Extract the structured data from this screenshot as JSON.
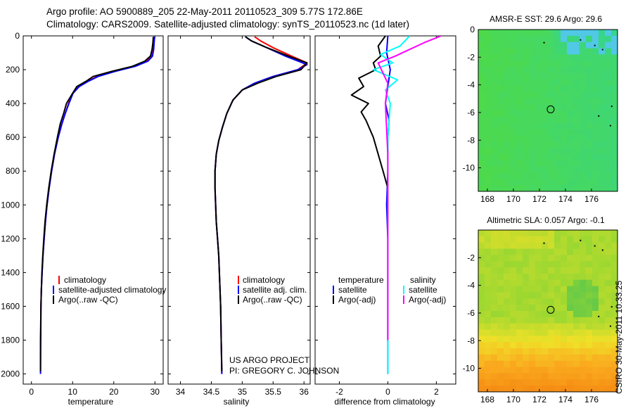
{
  "header": {
    "line1": "Argo profile: AO 5900889_205 22-May-2011 20110523_309 5.77S 172.86E",
    "line2": "Climatology: CARS2009. Satellite-adjusted climatology: synTS_20110523.nc (1d later)"
  },
  "credit": {
    "line1": "US ARGO PROJECT",
    "line2": "PI: GREGORY C. JOHNSON"
  },
  "side_label": "CSIRO 30-May-2011 10:33:25",
  "colors": {
    "climatology": "#ff0000",
    "satellite": "#0000ff",
    "argo": "#000000",
    "sal_satellite": "#00ffff",
    "sal_argo": "#ff00ff"
  },
  "chart_data": [
    {
      "type": "line",
      "id": "temperature",
      "xlabel": "temperature",
      "ylabel": "",
      "xlim": [
        -2,
        32
      ],
      "ylim": [
        2060,
        0
      ],
      "y_reversed": true,
      "xticks": [
        0,
        10,
        20,
        30
      ],
      "yticks": [
        0,
        200,
        400,
        600,
        800,
        1000,
        1200,
        1400,
        1600,
        1800,
        2000
      ],
      "legend": [
        "climatology",
        "satellite-adjusted climatology",
        "Argo(..raw -QC)"
      ],
      "series": [
        {
          "name": "climatology",
          "color": "#ff0000",
          "x": [
            29.9,
            29.8,
            29.6,
            29.2,
            28,
            25,
            20,
            16,
            13.5,
            11.5,
            10,
            9,
            8.2,
            7.4,
            6.5,
            5.6,
            4.9,
            4.3,
            3.8,
            3.4,
            3.1,
            2.8,
            2.6,
            2.4,
            2.3,
            2.25
          ],
          "y": [
            5,
            40,
            80,
            120,
            150,
            180,
            210,
            240,
            270,
            300,
            340,
            400,
            460,
            520,
            600,
            700,
            800,
            900,
            1000,
            1100,
            1200,
            1300,
            1400,
            1500,
            1600,
            1800
          ]
        },
        {
          "name": "satellite-adjusted climatology",
          "color": "#0000ff",
          "x": [
            29.9,
            29.8,
            29.7,
            29.4,
            28.3,
            25.2,
            20.3,
            16.2,
            13.7,
            11.6,
            10.1,
            9.1,
            8.2,
            7.4,
            6.5,
            5.6,
            4.9,
            4.3,
            3.8,
            3.4,
            3.1,
            2.8,
            2.6,
            2.4,
            2.3,
            2.25,
            2.2
          ],
          "y": [
            5,
            40,
            80,
            120,
            150,
            180,
            210,
            240,
            270,
            300,
            340,
            400,
            460,
            520,
            600,
            700,
            800,
            900,
            1000,
            1100,
            1200,
            1300,
            1400,
            1500,
            1600,
            1800,
            2000
          ]
        },
        {
          "name": "Argo(..raw -QC)",
          "color": "#000000",
          "x": [
            29.6,
            29.5,
            29.3,
            28.9,
            27.5,
            24.5,
            19.5,
            15,
            13.5,
            11,
            10,
            8.5,
            7.8,
            7,
            6.3,
            5.5,
            4.8,
            4.2,
            3.7,
            3.3,
            3,
            2.75,
            2.55,
            2.4,
            2.3,
            2.2,
            2.2
          ],
          "y": [
            5,
            40,
            80,
            120,
            150,
            180,
            210,
            240,
            265,
            300,
            340,
            400,
            460,
            520,
            600,
            700,
            800,
            900,
            1000,
            1100,
            1200,
            1300,
            1400,
            1500,
            1600,
            1800,
            1985
          ]
        }
      ]
    },
    {
      "type": "line",
      "id": "salinity",
      "xlabel": "salinity",
      "xlim": [
        33.8,
        36.1
      ],
      "ylim": [
        2060,
        0
      ],
      "y_reversed": true,
      "xticks": [
        34,
        34.5,
        35,
        35.5,
        36
      ],
      "legend": [
        "climatology",
        "satellite adj. clim.",
        "Argo(..raw -QC)"
      ],
      "series": [
        {
          "name": "climatology",
          "color": "#ff0000",
          "x": [
            35.2,
            35.3,
            35.5,
            35.8,
            36.05,
            35.9,
            35.5,
            35.2,
            35,
            34.85,
            34.75,
            34.68,
            34.62,
            34.58,
            34.56,
            34.56,
            34.57,
            34.58,
            34.6,
            34.62,
            34.63,
            34.64,
            34.65,
            34.66,
            34.67
          ],
          "y": [
            5,
            30,
            70,
            120,
            160,
            200,
            240,
            280,
            320,
            380,
            460,
            540,
            620,
            700,
            800,
            900,
            1000,
            1100,
            1200,
            1300,
            1400,
            1500,
            1600,
            1800,
            2000
          ]
        },
        {
          "name": "satellite adj. clim.",
          "color": "#0000ff",
          "x": [
            35.05,
            35.15,
            35.4,
            35.7,
            36.05,
            35.9,
            35.5,
            35.2,
            35,
            34.85,
            34.75,
            34.68,
            34.62,
            34.58,
            34.56,
            34.56,
            34.57,
            34.58,
            34.6,
            34.62,
            34.63,
            34.64,
            34.65,
            34.66,
            34.67
          ],
          "y": [
            5,
            30,
            70,
            120,
            170,
            200,
            240,
            280,
            320,
            380,
            460,
            540,
            620,
            700,
            800,
            900,
            1000,
            1100,
            1200,
            1300,
            1400,
            1500,
            1600,
            1800,
            2000
          ]
        },
        {
          "name": "Argo(..raw -QC)",
          "color": "#000000",
          "x": [
            35.05,
            35.15,
            35.4,
            35.75,
            36.05,
            35.95,
            35.55,
            35.25,
            35,
            34.85,
            34.75,
            34.68,
            34.62,
            34.58,
            34.56,
            34.56,
            34.57,
            34.58,
            34.6,
            34.62,
            34.63,
            34.64,
            34.65,
            34.66,
            34.67
          ],
          "y": [
            5,
            30,
            70,
            120,
            160,
            200,
            240,
            280,
            320,
            380,
            460,
            540,
            620,
            700,
            800,
            900,
            1000,
            1100,
            1200,
            1300,
            1400,
            1500,
            1600,
            1800,
            1985
          ]
        }
      ]
    },
    {
      "type": "line",
      "id": "difference",
      "xlabel": "difference from climatology",
      "xlim": [
        -3,
        2.8
      ],
      "ylim": [
        2060,
        0
      ],
      "y_reversed": true,
      "xticks": [
        -2,
        0,
        2
      ],
      "legend_titles": [
        "temperature",
        "salinity"
      ],
      "legend": [
        "satellite",
        "Argo(-adj)",
        "satellite",
        "Argo(-adj)"
      ],
      "series": [
        {
          "name": "temperature satellite",
          "color": "#0000ff",
          "x": [
            0,
            -0.05,
            0.1,
            0,
            -0.1,
            0.05,
            0,
            0,
            -0.05,
            0,
            0,
            0,
            0,
            0
          ],
          "y": [
            0,
            100,
            200,
            300,
            400,
            500,
            600,
            800,
            1000,
            1200,
            1400,
            1600,
            1800,
            2000
          ]
        },
        {
          "name": "temperature Argo(-adj)",
          "color": "#000000",
          "x": [
            -0.1,
            -0.4,
            -0.3,
            -0.6,
            -0.5,
            -1.2,
            -1.0,
            -1.5,
            -0.8,
            -1.1,
            -0.9,
            -0.6,
            -0.4,
            -0.2,
            0
          ],
          "y": [
            0,
            60,
            120,
            160,
            200,
            250,
            300,
            350,
            400,
            450,
            500,
            600,
            700,
            800,
            900
          ]
        },
        {
          "name": "salinity satellite",
          "color": "#00ffff",
          "x": [
            0.9,
            0.5,
            -0.3,
            0.2,
            -0.6,
            0.4,
            -0.1,
            0.1,
            0,
            0,
            0,
            0,
            0,
            0
          ],
          "y": [
            0,
            60,
            110,
            160,
            200,
            260,
            320,
            400,
            600,
            800,
            1200,
            1600,
            1800,
            2000
          ]
        },
        {
          "name": "salinity Argo(-adj)",
          "color": "#ff00ff",
          "x": [
            2.2,
            1.5,
            0.9,
            0.3,
            -0.4,
            -0.2,
            0,
            -0.1,
            0,
            0,
            0,
            0
          ],
          "y": [
            0,
            40,
            80,
            120,
            160,
            220,
            280,
            400,
            700,
            1000,
            1400,
            1800
          ]
        }
      ]
    },
    {
      "type": "heatmap",
      "id": "amsre-sst",
      "title": "AMSR-E SST: 29.6 Argo: 29.6",
      "xlim": [
        167.3,
        178
      ],
      "ylim": [
        -11.7,
        0
      ],
      "xticks": [
        168,
        170,
        172,
        174,
        176
      ],
      "yticks": [
        0,
        -2,
        -4,
        -6,
        -8,
        -10
      ],
      "argo_position": {
        "lon": 172.86,
        "lat": -5.77
      }
    },
    {
      "type": "heatmap",
      "id": "altimetric-sla",
      "title": "Altimetric SLA: 0.057 Argo: -0.1",
      "xlim": [
        167.3,
        178
      ],
      "ylim": [
        -11.7,
        0
      ],
      "xticks": [
        168,
        170,
        172,
        174,
        176
      ],
      "yticks": [
        -2,
        -4,
        -6,
        -8,
        -10
      ],
      "argo_position": {
        "lon": 172.86,
        "lat": -5.77
      }
    }
  ]
}
